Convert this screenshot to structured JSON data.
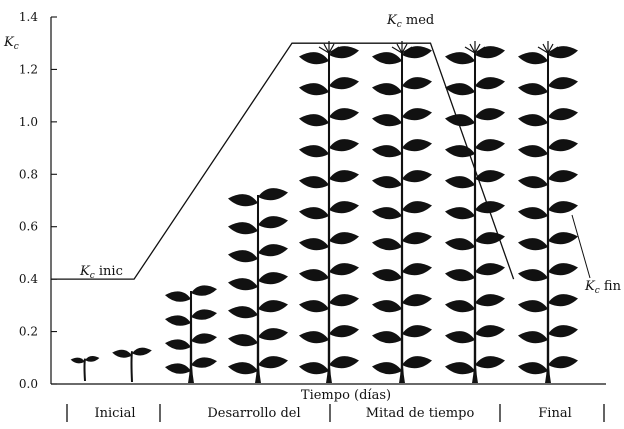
{
  "chart_data": {
    "type": "line",
    "ylabel_main": "K",
    "ylabel_sub": "c",
    "xlabel": "Tiempo (días)",
    "yticks": [
      "0.0",
      "0.2",
      "0.4",
      "0.6",
      "0.8",
      "1.0",
      "1.2",
      "1.4"
    ],
    "ylim": [
      0,
      1.4
    ],
    "grid": false,
    "series": [
      {
        "x": [
          0,
          0.15,
          0.435,
          0.685,
          0.835
        ],
        "y": [
          0.4,
          0.4,
          1.3,
          1.3,
          0.4
        ]
      }
    ],
    "annotations": [
      {
        "main": "K",
        "sub": "c",
        "rest": " inic"
      },
      {
        "main": "K",
        "sub": "c",
        "rest": " med"
      },
      {
        "main": "K",
        "sub": "c",
        "rest": " fin"
      }
    ],
    "stages": [
      "Inicial",
      "Desarrollo del",
      "Mitad de tiempo",
      "Final"
    ]
  }
}
